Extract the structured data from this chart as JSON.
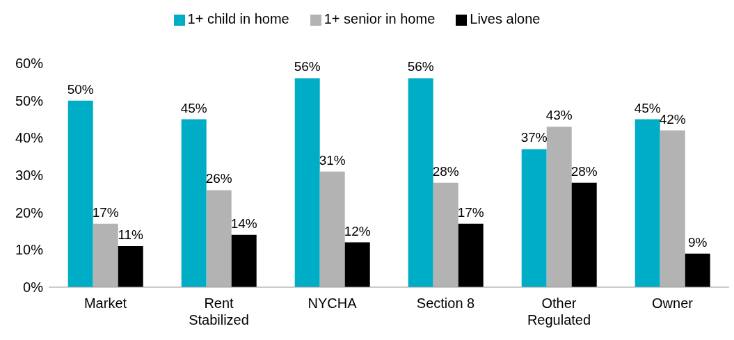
{
  "chart_data": {
    "type": "bar",
    "categories": [
      "Market",
      "Rent Stabilized",
      "NYCHA",
      "Section 8",
      "Other Regulated",
      "Owner"
    ],
    "series": [
      {
        "name": "1+ child in home",
        "color": "#00adc6",
        "values": [
          50,
          45,
          56,
          56,
          37,
          45
        ],
        "value_labels": [
          "50%",
          "45%",
          "56%",
          "56%",
          "37%",
          "45%"
        ]
      },
      {
        "name": "1+ senior in home",
        "color": "#b3b3b3",
        "values": [
          17,
          26,
          31,
          28,
          43,
          42
        ],
        "value_labels": [
          "17%",
          "26%",
          "31%",
          "28%",
          "43%",
          "42%"
        ]
      },
      {
        "name": "Lives alone",
        "color": "#000000",
        "values": [
          11,
          14,
          12,
          17,
          28,
          9
        ],
        "value_labels": [
          "11%",
          "14%",
          "12%",
          "17%",
          "28%",
          "9%"
        ]
      }
    ],
    "ylim": [
      0,
      60
    ],
    "yticks": [
      {
        "value": 0,
        "label": "0%"
      },
      {
        "value": 10,
        "label": "10%"
      },
      {
        "value": 20,
        "label": "20%"
      },
      {
        "value": 30,
        "label": "30%"
      },
      {
        "value": 40,
        "label": "40%"
      },
      {
        "value": 50,
        "label": "50%"
      },
      {
        "value": 60,
        "label": "60%"
      }
    ],
    "grid": false,
    "legend": "top"
  }
}
